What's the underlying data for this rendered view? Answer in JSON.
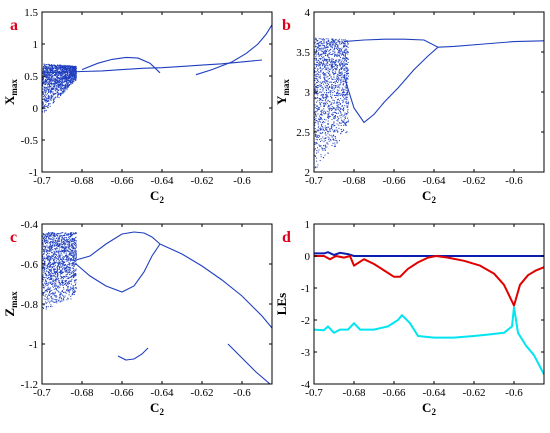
{
  "colors": {
    "dots": "#1f3fbf",
    "line_blue": "#1f3fbf",
    "lyap_zero": "#0a1fb0",
    "lyap_red": "#e00000",
    "lyap_cyan": "#00e5f0",
    "panel_letter": "#e0001b"
  },
  "chart_data": [
    {
      "type": "scatter",
      "panel": "a",
      "xlabel_main": "C",
      "xlabel_sub": "2",
      "ylabel_main": "X",
      "ylabel_sub": "max",
      "xlim": [
        -0.7,
        -0.585
      ],
      "ylim": [
        -1,
        1.5
      ],
      "xticks": [
        -0.7,
        -0.68,
        -0.66,
        -0.64,
        -0.62,
        -0.6
      ],
      "xticklabels": [
        "-0.7",
        "-0.68",
        "-0.66",
        "-0.64",
        "-0.62",
        "-0.6"
      ],
      "yticks": [
        -1,
        -0.5,
        0,
        0.5,
        1,
        1.5
      ],
      "yticklabels": [
        "-1",
        "-0.5",
        "0",
        "0.5",
        "1",
        "1.5"
      ],
      "curves": [
        {
          "x": [
            -0.7,
            -0.69,
            -0.68,
            -0.67,
            -0.66,
            -0.65,
            -0.64,
            -0.63,
            -0.62,
            -0.61,
            -0.6,
            -0.59
          ],
          "y": [
            0.55,
            0.56,
            0.57,
            0.58,
            0.6,
            0.62,
            0.63,
            0.65,
            0.67,
            0.69,
            0.72,
            0.75
          ]
        },
        {
          "x": [
            -0.68,
            -0.672,
            -0.665,
            -0.658,
            -0.652,
            -0.646,
            -0.641
          ],
          "y": [
            0.6,
            0.7,
            0.76,
            0.79,
            0.78,
            0.7,
            0.55
          ]
        },
        {
          "x": [
            -0.623,
            -0.615,
            -0.605,
            -0.598,
            -0.592,
            -0.588,
            -0.585
          ],
          "y": [
            0.52,
            0.6,
            0.72,
            0.85,
            1.0,
            1.15,
            1.3
          ]
        }
      ],
      "chaotic_band": {
        "x_range": [
          -0.7,
          -0.683
        ],
        "y_top": [
          0.7,
          0.66
        ],
        "y_bottom": [
          -0.1,
          0.45
        ]
      }
    },
    {
      "type": "scatter",
      "panel": "b",
      "xlabel_main": "C",
      "xlabel_sub": "2",
      "ylabel_main": "Y",
      "ylabel_sub": "max",
      "xlim": [
        -0.7,
        -0.585
      ],
      "ylim": [
        2,
        4
      ],
      "xticks": [
        -0.7,
        -0.68,
        -0.66,
        -0.64,
        -0.62,
        -0.6
      ],
      "xticklabels": [
        "-0.7",
        "-0.68",
        "-0.66",
        "-0.64",
        "-0.62",
        "-0.6"
      ],
      "yticks": [
        2,
        2.5,
        3,
        3.5,
        4
      ],
      "yticklabels": [
        "2",
        "2.5",
        "3",
        "3.5",
        "4"
      ],
      "curves": [
        {
          "x": [
            -0.685,
            -0.675,
            -0.665,
            -0.655,
            -0.645,
            -0.638,
            -0.63,
            -0.615,
            -0.6,
            -0.585
          ],
          "y": [
            3.63,
            3.65,
            3.66,
            3.66,
            3.65,
            3.56,
            3.57,
            3.6,
            3.63,
            3.64
          ]
        },
        {
          "x": [
            -0.685,
            -0.68,
            -0.675,
            -0.67,
            -0.665,
            -0.658,
            -0.65,
            -0.643,
            -0.638
          ],
          "y": [
            3.2,
            2.8,
            2.62,
            2.72,
            2.87,
            3.05,
            3.28,
            3.45,
            3.56
          ]
        }
      ],
      "chaotic_band": {
        "x_range": [
          -0.7,
          -0.683
        ],
        "y_top": [
          3.68,
          3.66
        ],
        "y_bottom": [
          2.02,
          2.5
        ]
      }
    },
    {
      "type": "scatter",
      "panel": "c",
      "xlabel_main": "C",
      "xlabel_sub": "2",
      "ylabel_main": "Z",
      "ylabel_sub": "max",
      "xlim": [
        -0.7,
        -0.585
      ],
      "ylim": [
        -1.2,
        -0.4
      ],
      "xticks": [
        -0.7,
        -0.68,
        -0.66,
        -0.64,
        -0.62,
        -0.6
      ],
      "xticklabels": [
        "-0.7",
        "-0.68",
        "-0.66",
        "-0.64",
        "-0.62",
        "-0.6"
      ],
      "yticks": [
        -1.2,
        -1,
        -0.8,
        -0.6,
        -0.4
      ],
      "yticklabels": [
        "-1.2",
        "-1",
        "-0.8",
        "-0.6",
        "-0.4"
      ],
      "curves": [
        {
          "x": [
            -0.683,
            -0.676,
            -0.668,
            -0.66,
            -0.654,
            -0.649,
            -0.645,
            -0.641
          ],
          "y": [
            -0.6,
            -0.66,
            -0.71,
            -0.74,
            -0.71,
            -0.64,
            -0.56,
            -0.5
          ]
        },
        {
          "x": [
            -0.683,
            -0.676,
            -0.668,
            -0.66,
            -0.654,
            -0.649,
            -0.645,
            -0.641
          ],
          "y": [
            -0.58,
            -0.56,
            -0.5,
            -0.45,
            -0.44,
            -0.445,
            -0.465,
            -0.5
          ]
        },
        {
          "x": [
            -0.641,
            -0.63,
            -0.62,
            -0.61,
            -0.6,
            -0.59,
            -0.585
          ],
          "y": [
            -0.5,
            -0.55,
            -0.61,
            -0.68,
            -0.76,
            -0.86,
            -0.92
          ]
        },
        {
          "x": [
            -0.662,
            -0.658,
            -0.654,
            -0.65,
            -0.647
          ],
          "y": [
            -1.06,
            -1.08,
            -1.075,
            -1.05,
            -1.02
          ]
        },
        {
          "x": [
            -0.607,
            -0.6,
            -0.593,
            -0.586
          ],
          "y": [
            -1.0,
            -1.07,
            -1.14,
            -1.2
          ]
        }
      ],
      "chaotic_band": {
        "x_range": [
          -0.7,
          -0.683
        ],
        "y_top": [
          -0.44,
          -0.44
        ],
        "y_bottom": [
          -0.84,
          -0.76
        ]
      }
    },
    {
      "type": "line",
      "panel": "d",
      "xlabel_main": "C",
      "xlabel_sub": "2",
      "ylabel_main": "LEs",
      "ylabel_sub": "",
      "xlim": [
        -0.7,
        -0.585
      ],
      "ylim": [
        -4,
        1
      ],
      "xticks": [
        -0.7,
        -0.68,
        -0.66,
        -0.64,
        -0.62,
        -0.6
      ],
      "xticklabels": [
        "-0.7",
        "-0.68",
        "-0.66",
        "-0.64",
        "-0.62",
        "-0.6"
      ],
      "yticks": [
        -4,
        -3,
        -2,
        -1,
        0,
        1
      ],
      "yticklabels": [
        "-4",
        "-3",
        "-2",
        "-1",
        "0",
        "1"
      ],
      "series": [
        {
          "color_key": "lyap_zero",
          "x": [
            -0.7,
            -0.695,
            -0.693,
            -0.69,
            -0.687,
            -0.683,
            -0.68,
            -0.585
          ],
          "y": [
            0.08,
            0.08,
            0.12,
            0.03,
            0.1,
            0.06,
            0.0,
            0.0
          ]
        },
        {
          "color_key": "lyap_red",
          "x": [
            -0.7,
            -0.695,
            -0.692,
            -0.689,
            -0.685,
            -0.682,
            -0.68,
            -0.675,
            -0.67,
            -0.665,
            -0.66,
            -0.657,
            -0.653,
            -0.648,
            -0.643,
            -0.639,
            -0.633,
            -0.625,
            -0.617,
            -0.61,
            -0.605,
            -0.6,
            -0.597,
            -0.593,
            -0.589,
            -0.585
          ],
          "y": [
            0.0,
            0.0,
            -0.1,
            0.0,
            -0.05,
            0.0,
            -0.3,
            -0.1,
            -0.25,
            -0.45,
            -0.65,
            -0.65,
            -0.4,
            -0.2,
            -0.05,
            0.0,
            -0.05,
            -0.15,
            -0.3,
            -0.55,
            -0.9,
            -1.55,
            -0.9,
            -0.6,
            -0.45,
            -0.35
          ]
        },
        {
          "color_key": "lyap_cyan",
          "x": [
            -0.7,
            -0.695,
            -0.693,
            -0.69,
            -0.687,
            -0.683,
            -0.68,
            -0.677,
            -0.67,
            -0.663,
            -0.658,
            -0.656,
            -0.652,
            -0.648,
            -0.64,
            -0.63,
            -0.62,
            -0.612,
            -0.605,
            -0.601,
            -0.6,
            -0.598,
            -0.594,
            -0.59,
            -0.585
          ],
          "y": [
            -2.3,
            -2.32,
            -2.2,
            -2.4,
            -2.3,
            -2.3,
            -2.1,
            -2.3,
            -2.3,
            -2.2,
            -2.0,
            -1.85,
            -2.1,
            -2.5,
            -2.55,
            -2.55,
            -2.5,
            -2.45,
            -2.4,
            -2.2,
            -1.6,
            -2.4,
            -2.8,
            -3.1,
            -3.7
          ]
        }
      ]
    }
  ]
}
